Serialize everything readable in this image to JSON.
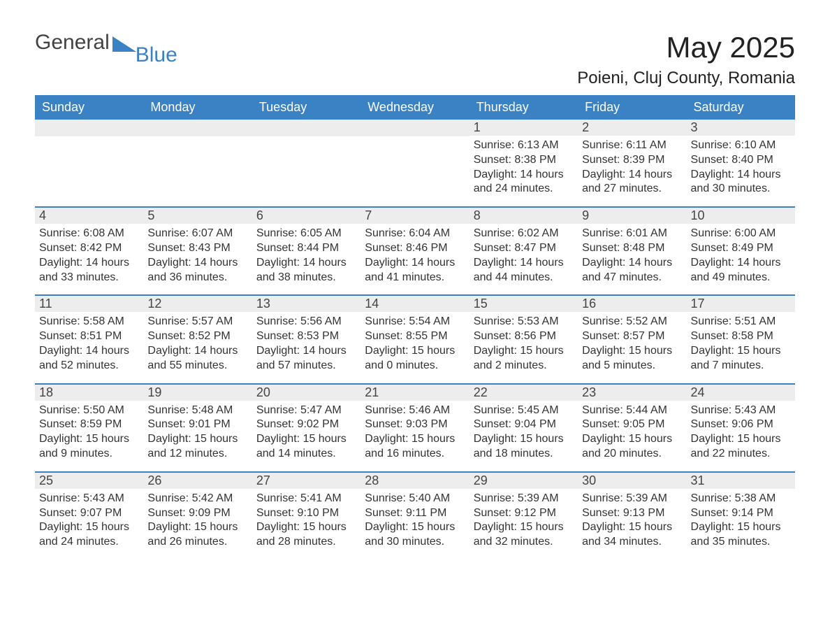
{
  "brand": {
    "word1": "General",
    "word2": "Blue",
    "accent_color": "#3b82c4",
    "text_color": "#424242"
  },
  "title": "May 2025",
  "location": "Poieni, Cluj County, Romania",
  "colors": {
    "header_bg": "#3b82c4",
    "header_text": "#ffffff",
    "daynum_bg": "#ededed",
    "daynum_text": "#444444",
    "body_text": "#333333",
    "row_border": "#3b82c4",
    "page_bg": "#ffffff"
  },
  "fonts": {
    "title_size": 42,
    "location_size": 24,
    "header_size": 18,
    "daynum_size": 18,
    "body_size": 16
  },
  "weekdays": [
    "Sunday",
    "Monday",
    "Tuesday",
    "Wednesday",
    "Thursday",
    "Friday",
    "Saturday"
  ],
  "weeks": [
    [
      null,
      null,
      null,
      null,
      {
        "day": "1",
        "sunrise": "Sunrise: 6:13 AM",
        "sunset": "Sunset: 8:38 PM",
        "dl1": "Daylight: 14 hours",
        "dl2": "and 24 minutes."
      },
      {
        "day": "2",
        "sunrise": "Sunrise: 6:11 AM",
        "sunset": "Sunset: 8:39 PM",
        "dl1": "Daylight: 14 hours",
        "dl2": "and 27 minutes."
      },
      {
        "day": "3",
        "sunrise": "Sunrise: 6:10 AM",
        "sunset": "Sunset: 8:40 PM",
        "dl1": "Daylight: 14 hours",
        "dl2": "and 30 minutes."
      }
    ],
    [
      {
        "day": "4",
        "sunrise": "Sunrise: 6:08 AM",
        "sunset": "Sunset: 8:42 PM",
        "dl1": "Daylight: 14 hours",
        "dl2": "and 33 minutes."
      },
      {
        "day": "5",
        "sunrise": "Sunrise: 6:07 AM",
        "sunset": "Sunset: 8:43 PM",
        "dl1": "Daylight: 14 hours",
        "dl2": "and 36 minutes."
      },
      {
        "day": "6",
        "sunrise": "Sunrise: 6:05 AM",
        "sunset": "Sunset: 8:44 PM",
        "dl1": "Daylight: 14 hours",
        "dl2": "and 38 minutes."
      },
      {
        "day": "7",
        "sunrise": "Sunrise: 6:04 AM",
        "sunset": "Sunset: 8:46 PM",
        "dl1": "Daylight: 14 hours",
        "dl2": "and 41 minutes."
      },
      {
        "day": "8",
        "sunrise": "Sunrise: 6:02 AM",
        "sunset": "Sunset: 8:47 PM",
        "dl1": "Daylight: 14 hours",
        "dl2": "and 44 minutes."
      },
      {
        "day": "9",
        "sunrise": "Sunrise: 6:01 AM",
        "sunset": "Sunset: 8:48 PM",
        "dl1": "Daylight: 14 hours",
        "dl2": "and 47 minutes."
      },
      {
        "day": "10",
        "sunrise": "Sunrise: 6:00 AM",
        "sunset": "Sunset: 8:49 PM",
        "dl1": "Daylight: 14 hours",
        "dl2": "and 49 minutes."
      }
    ],
    [
      {
        "day": "11",
        "sunrise": "Sunrise: 5:58 AM",
        "sunset": "Sunset: 8:51 PM",
        "dl1": "Daylight: 14 hours",
        "dl2": "and 52 minutes."
      },
      {
        "day": "12",
        "sunrise": "Sunrise: 5:57 AM",
        "sunset": "Sunset: 8:52 PM",
        "dl1": "Daylight: 14 hours",
        "dl2": "and 55 minutes."
      },
      {
        "day": "13",
        "sunrise": "Sunrise: 5:56 AM",
        "sunset": "Sunset: 8:53 PM",
        "dl1": "Daylight: 14 hours",
        "dl2": "and 57 minutes."
      },
      {
        "day": "14",
        "sunrise": "Sunrise: 5:54 AM",
        "sunset": "Sunset: 8:55 PM",
        "dl1": "Daylight: 15 hours",
        "dl2": "and 0 minutes."
      },
      {
        "day": "15",
        "sunrise": "Sunrise: 5:53 AM",
        "sunset": "Sunset: 8:56 PM",
        "dl1": "Daylight: 15 hours",
        "dl2": "and 2 minutes."
      },
      {
        "day": "16",
        "sunrise": "Sunrise: 5:52 AM",
        "sunset": "Sunset: 8:57 PM",
        "dl1": "Daylight: 15 hours",
        "dl2": "and 5 minutes."
      },
      {
        "day": "17",
        "sunrise": "Sunrise: 5:51 AM",
        "sunset": "Sunset: 8:58 PM",
        "dl1": "Daylight: 15 hours",
        "dl2": "and 7 minutes."
      }
    ],
    [
      {
        "day": "18",
        "sunrise": "Sunrise: 5:50 AM",
        "sunset": "Sunset: 8:59 PM",
        "dl1": "Daylight: 15 hours",
        "dl2": "and 9 minutes."
      },
      {
        "day": "19",
        "sunrise": "Sunrise: 5:48 AM",
        "sunset": "Sunset: 9:01 PM",
        "dl1": "Daylight: 15 hours",
        "dl2": "and 12 minutes."
      },
      {
        "day": "20",
        "sunrise": "Sunrise: 5:47 AM",
        "sunset": "Sunset: 9:02 PM",
        "dl1": "Daylight: 15 hours",
        "dl2": "and 14 minutes."
      },
      {
        "day": "21",
        "sunrise": "Sunrise: 5:46 AM",
        "sunset": "Sunset: 9:03 PM",
        "dl1": "Daylight: 15 hours",
        "dl2": "and 16 minutes."
      },
      {
        "day": "22",
        "sunrise": "Sunrise: 5:45 AM",
        "sunset": "Sunset: 9:04 PM",
        "dl1": "Daylight: 15 hours",
        "dl2": "and 18 minutes."
      },
      {
        "day": "23",
        "sunrise": "Sunrise: 5:44 AM",
        "sunset": "Sunset: 9:05 PM",
        "dl1": "Daylight: 15 hours",
        "dl2": "and 20 minutes."
      },
      {
        "day": "24",
        "sunrise": "Sunrise: 5:43 AM",
        "sunset": "Sunset: 9:06 PM",
        "dl1": "Daylight: 15 hours",
        "dl2": "and 22 minutes."
      }
    ],
    [
      {
        "day": "25",
        "sunrise": "Sunrise: 5:43 AM",
        "sunset": "Sunset: 9:07 PM",
        "dl1": "Daylight: 15 hours",
        "dl2": "and 24 minutes."
      },
      {
        "day": "26",
        "sunrise": "Sunrise: 5:42 AM",
        "sunset": "Sunset: 9:09 PM",
        "dl1": "Daylight: 15 hours",
        "dl2": "and 26 minutes."
      },
      {
        "day": "27",
        "sunrise": "Sunrise: 5:41 AM",
        "sunset": "Sunset: 9:10 PM",
        "dl1": "Daylight: 15 hours",
        "dl2": "and 28 minutes."
      },
      {
        "day": "28",
        "sunrise": "Sunrise: 5:40 AM",
        "sunset": "Sunset: 9:11 PM",
        "dl1": "Daylight: 15 hours",
        "dl2": "and 30 minutes."
      },
      {
        "day": "29",
        "sunrise": "Sunrise: 5:39 AM",
        "sunset": "Sunset: 9:12 PM",
        "dl1": "Daylight: 15 hours",
        "dl2": "and 32 minutes."
      },
      {
        "day": "30",
        "sunrise": "Sunrise: 5:39 AM",
        "sunset": "Sunset: 9:13 PM",
        "dl1": "Daylight: 15 hours",
        "dl2": "and 34 minutes."
      },
      {
        "day": "31",
        "sunrise": "Sunrise: 5:38 AM",
        "sunset": "Sunset: 9:14 PM",
        "dl1": "Daylight: 15 hours",
        "dl2": "and 35 minutes."
      }
    ]
  ]
}
